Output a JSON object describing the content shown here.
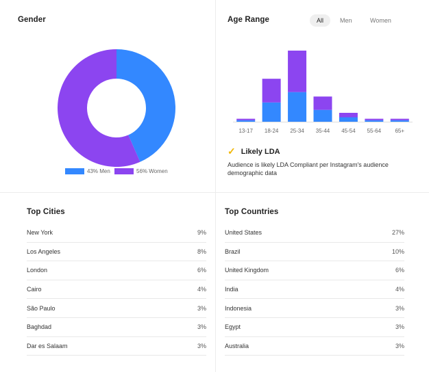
{
  "gender": {
    "title": "Gender",
    "legend": [
      {
        "label": "43% Men",
        "value": 43,
        "color": "#3388ff"
      },
      {
        "label": "56% Women",
        "value": 56,
        "color": "#8c45f0"
      }
    ]
  },
  "age_range": {
    "title": "Age Range",
    "filters": [
      {
        "label": "All",
        "active": true
      },
      {
        "label": "Men",
        "active": false
      },
      {
        "label": "Women",
        "active": false
      }
    ]
  },
  "chart_data": [
    {
      "type": "pie",
      "title": "Gender",
      "categories": [
        "Men",
        "Women"
      ],
      "values": [
        43,
        56
      ],
      "colors": [
        "#3388ff",
        "#8c45f0"
      ],
      "donut": true
    },
    {
      "type": "bar",
      "title": "Age Range",
      "stacked": true,
      "categories": [
        "13-17",
        "18-24",
        "25-34",
        "35-44",
        "45-54",
        "55-64",
        "65+"
      ],
      "series": [
        {
          "name": "Men",
          "color": "#3388ff",
          "values": [
            1,
            13,
            20,
            8,
            3,
            1,
            1
          ]
        },
        {
          "name": "Women",
          "color": "#8c45f0",
          "values": [
            1,
            16,
            28,
            9,
            3,
            1,
            1
          ]
        }
      ],
      "grid": false
    }
  ],
  "lda": {
    "check_icon": "check-icon",
    "label": "Likely LDA",
    "description": "Audience is likely LDA Compliant per Instagram's audience demographic data"
  },
  "top_cities": {
    "title": "Top Cities",
    "rows": [
      {
        "name": "New York",
        "pct": "9%"
      },
      {
        "name": "Los Angeles",
        "pct": "8%"
      },
      {
        "name": "London",
        "pct": "6%"
      },
      {
        "name": "Cairo",
        "pct": "4%"
      },
      {
        "name": "São Paulo",
        "pct": "3%"
      },
      {
        "name": "Baghdad",
        "pct": "3%"
      },
      {
        "name": "Dar es Salaam",
        "pct": "3%"
      }
    ]
  },
  "top_countries": {
    "title": "Top Countries",
    "rows": [
      {
        "name": "United States",
        "pct": "27%"
      },
      {
        "name": "Brazil",
        "pct": "10%"
      },
      {
        "name": "United Kingdom",
        "pct": "6%"
      },
      {
        "name": "India",
        "pct": "4%"
      },
      {
        "name": "Indonesia",
        "pct": "3%"
      },
      {
        "name": "Egypt",
        "pct": "3%"
      },
      {
        "name": "Australia",
        "pct": "3%"
      }
    ]
  }
}
